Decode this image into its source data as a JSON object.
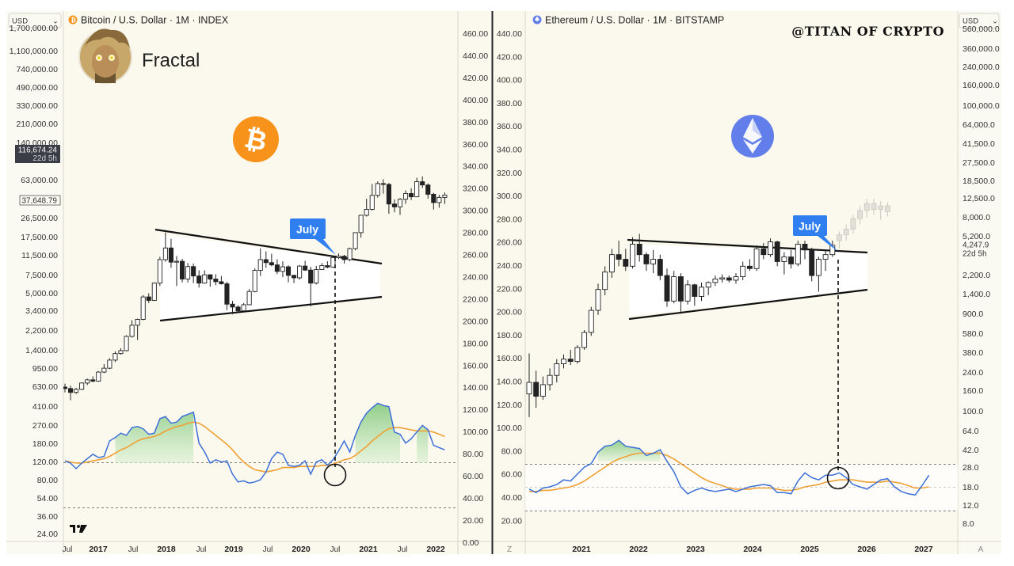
{
  "chart_data": [
    {
      "type": "candlestick",
      "title": "Bitcoin / U.S. Dollar · 1M · INDEX",
      "annotation_label": "Fractal",
      "callout": "July",
      "currency_select": "USD",
      "y_left_scale": "log",
      "y_left_ticks": [
        "1,100,000.00",
        "740,000.00",
        "490,000.00",
        "330,000.00",
        "210,000.00",
        "140,000.00",
        "63,000.00",
        "26,500.00",
        "17,500.00",
        "11,500.00",
        "7,500.00",
        "5,000.00",
        "3,400.00",
        "2,200.00",
        "1,400.00",
        "950.00",
        "630.00",
        "410.00",
        "270.00",
        "180.00",
        "120.00",
        "80.00",
        "54.00",
        "36.00",
        "24.00"
      ],
      "y_left_partial_top": "1,700,000.00",
      "price_badge": {
        "price": "116,674.24",
        "countdown": "22d 5h"
      },
      "level_badge": "37,648.79",
      "y_right_ticks": [
        "460.00",
        "440.00",
        "420.00",
        "400.00",
        "380.00",
        "360.00",
        "340.00",
        "320.00",
        "300.00",
        "280.00",
        "260.00",
        "240.00",
        "220.00",
        "200.00",
        "180.00",
        "160.00",
        "140.00",
        "120.00",
        "100.00",
        "80.00",
        "60.00",
        "40.00",
        "20.00",
        "0.00"
      ],
      "x_ticks": [
        {
          "label": "Jul",
          "bold": false
        },
        {
          "label": "2017",
          "bold": true
        },
        {
          "label": "Jul",
          "bold": false
        },
        {
          "label": "2018",
          "bold": true
        },
        {
          "label": "Jul",
          "bold": false
        },
        {
          "label": "2019",
          "bold": true
        },
        {
          "label": "Jul",
          "bold": false
        },
        {
          "label": "2020",
          "bold": true
        },
        {
          "label": "Jul",
          "bold": false
        },
        {
          "label": "2021",
          "bold": true
        },
        {
          "label": "Jul",
          "bold": false
        },
        {
          "label": "2022",
          "bold": true
        }
      ],
      "candles": [
        [
          630,
          680,
          560,
          610
        ],
        [
          610,
          650,
          470,
          560
        ],
        [
          560,
          620,
          540,
          600
        ],
        [
          600,
          700,
          590,
          690
        ],
        [
          690,
          760,
          660,
          740
        ],
        [
          740,
          800,
          700,
          720
        ],
        [
          720,
          900,
          710,
          880
        ],
        [
          880,
          1050,
          860,
          960
        ],
        [
          960,
          1200,
          940,
          1150
        ],
        [
          1150,
          1400,
          1100,
          1330
        ],
        [
          1330,
          1500,
          1300,
          1420
        ],
        [
          1420,
          2000,
          1400,
          1950
        ],
        [
          1950,
          2800,
          1900,
          2500
        ],
        [
          2500,
          2900,
          1800,
          2850
        ],
        [
          2850,
          4900,
          2800,
          4700
        ],
        [
          4700,
          5100,
          4100,
          4350
        ],
        [
          4350,
          6500,
          4300,
          6400
        ],
        [
          6400,
          11500,
          6000,
          10800
        ],
        [
          10800,
          19800,
          10300,
          14000
        ],
        [
          14000,
          17200,
          9000,
          10200
        ],
        [
          10200,
          11700,
          6000,
          10400
        ],
        [
          10400,
          11000,
          6500,
          7000
        ],
        [
          7000,
          10000,
          6500,
          9250
        ],
        [
          9250,
          9900,
          6400,
          7500
        ],
        [
          7500,
          8500,
          5800,
          6400
        ],
        [
          6400,
          8500,
          6300,
          7700
        ],
        [
          7700,
          7800,
          5900,
          7000
        ],
        [
          7000,
          7800,
          6100,
          6600
        ],
        [
          6600,
          7500,
          6200,
          6300
        ],
        [
          6300,
          6600,
          3500,
          4000
        ],
        [
          4000,
          4300,
          3200,
          3750
        ],
        [
          3750,
          3900,
          3350,
          3450
        ],
        [
          3450,
          4100,
          3400,
          3950
        ],
        [
          3950,
          5600,
          3900,
          5300
        ],
        [
          5300,
          8900,
          5200,
          8500
        ],
        [
          8500,
          13900,
          7500,
          10800
        ],
        [
          10800,
          13000,
          9000,
          10100
        ],
        [
          10100,
          12300,
          9300,
          9600
        ],
        [
          9600,
          10900,
          7800,
          8300
        ],
        [
          8300,
          10400,
          7300,
          9200
        ],
        [
          9200,
          9500,
          6500,
          7600
        ],
        [
          7600,
          7700,
          6400,
          7200
        ],
        [
          7200,
          9600,
          6900,
          9350
        ],
        [
          9350,
          10500,
          8400,
          8550
        ],
        [
          8550,
          9200,
          3800,
          6400
        ],
        [
          6400,
          9400,
          6200,
          8650
        ],
        [
          8650,
          10000,
          8600,
          9450
        ],
        [
          9450,
          10400,
          8900,
          9150
        ],
        [
          9150,
          11400,
          9000,
          11300
        ],
        [
          11300,
          12400,
          10900,
          11650
        ],
        [
          11650,
          12000,
          9900,
          10800
        ],
        [
          10800,
          14100,
          10400,
          13800
        ],
        [
          13800,
          19800,
          13300,
          19700
        ],
        [
          19700,
          29300,
          17600,
          29000
        ],
        [
          29000,
          41900,
          28200,
          33100
        ],
        [
          33100,
          58300,
          32300,
          45200
        ],
        [
          45200,
          61800,
          43000,
          58800
        ],
        [
          58800,
          64800,
          47000,
          57700
        ],
        [
          57700,
          59500,
          30000,
          37300
        ],
        [
          37300,
          41300,
          31000,
          35000
        ],
        [
          35000,
          42500,
          29300,
          41500
        ],
        [
          41500,
          50500,
          37400,
          47100
        ],
        [
          47100,
          52900,
          40800,
          43800
        ],
        [
          43800,
          67000,
          43300,
          61300
        ],
        [
          61300,
          69000,
          53300,
          57000
        ],
        [
          57000,
          59100,
          42000,
          46300
        ],
        [
          46300,
          47900,
          33000,
          38500
        ],
        [
          38500,
          45800,
          34300,
          43200
        ],
        [
          43200,
          48200,
          37300,
          45500
        ]
      ],
      "osc_line": [
        72,
        70,
        65,
        70,
        74,
        78,
        75,
        76,
        90,
        93,
        97,
        95,
        102,
        103,
        101,
        96,
        97,
        110,
        112,
        106,
        107,
        112,
        114,
        116,
        88,
        80,
        70,
        73,
        71,
        72,
        60,
        53,
        54,
        52,
        53,
        55,
        62,
        74,
        80,
        78,
        68,
        67,
        68,
        72,
        60,
        71,
        73,
        68,
        73,
        81,
        90,
        80,
        95,
        107,
        115,
        120,
        124,
        122,
        121,
        98,
        96,
        88,
        92,
        98,
        104,
        100,
        86,
        84,
        82
      ],
      "osc_signal": [
        72,
        71,
        70,
        70,
        71,
        72,
        73,
        74,
        76,
        79,
        82,
        84,
        87,
        90,
        92,
        93,
        94,
        96,
        99,
        101,
        103,
        104,
        106,
        107,
        106,
        103,
        99,
        95,
        91,
        87,
        82,
        76,
        71,
        67,
        64,
        63,
        62,
        63,
        64,
        66,
        66,
        66,
        67,
        67,
        67,
        67,
        68,
        68,
        69,
        71,
        73,
        74,
        77,
        81,
        85,
        90,
        94,
        98,
        101,
        102,
        102,
        101,
        100,
        99,
        99,
        99,
        98,
        96,
        94
      ],
      "osc_ticks": [
        "80.00",
        "60.00",
        "40.00",
        "20.00",
        "0.00"
      ],
      "osc_levels": [
        70,
        30
      ]
    },
    {
      "type": "candlestick",
      "title": "Ethereum / U.S. Dollar · 1M · BITSTAMP",
      "watermark": "@TITAN OF CRYPTO",
      "callout": "July",
      "currency_select": "USD",
      "y_left_ticks": [
        "440.00",
        "420.00",
        "400.00",
        "380.00",
        "360.00",
        "340.00",
        "320.00",
        "300.00",
        "280.00",
        "260.00",
        "240.00",
        "220.00",
        "200.00",
        "180.00",
        "160.00",
        "140.00",
        "120.00",
        "100.00",
        "80.00",
        "60.00",
        "40.00",
        "20.00"
      ],
      "y_right_scale": "log",
      "y_right_ticks": [
        "360,000.0",
        "240,000.0",
        "160,000.0",
        "100,000.0",
        "64,000.0",
        "41,500.0",
        "27,500.0",
        "18,500.0",
        "12,500.0",
        "8,000.0",
        "5,200.0",
        "2,200.0",
        "1,400.0",
        "900.0",
        "580.0",
        "380.0",
        "240.0",
        "160.0",
        "100.0",
        "64.0",
        "42.0",
        "28.0",
        "18.0",
        "12.0",
        "8.0"
      ],
      "y_right_partial_top": "560,000.0",
      "price_badge": {
        "price": "4,247.9",
        "countdown": "22d 5h"
      },
      "x_ticks": [
        "2021",
        "2022",
        "2023",
        "2024",
        "2025",
        "2026",
        "2027"
      ],
      "corner_left": "Z",
      "corner_right": "A",
      "candles": [
        [
          130,
          165,
          110,
          140
        ],
        [
          140,
          150,
          118,
          128
        ],
        [
          128,
          145,
          125,
          138
        ],
        [
          138,
          152,
          133,
          146
        ],
        [
          146,
          160,
          140,
          156
        ],
        [
          156,
          164,
          152,
          160
        ],
        [
          160,
          168,
          155,
          158
        ],
        [
          158,
          172,
          156,
          170
        ],
        [
          170,
          185,
          168,
          183
        ],
        [
          183,
          205,
          180,
          202
        ],
        [
          202,
          225,
          198,
          220
        ],
        [
          220,
          240,
          215,
          235
        ],
        [
          235,
          255,
          230,
          250
        ],
        [
          250,
          262,
          240,
          246
        ],
        [
          246,
          255,
          236,
          240
        ],
        [
          240,
          265,
          238,
          259
        ],
        [
          259,
          268,
          244,
          250
        ],
        [
          250,
          252,
          236,
          242
        ],
        [
          242,
          254,
          234,
          246
        ],
        [
          246,
          250,
          228,
          232
        ],
        [
          232,
          238,
          205,
          210
        ],
        [
          210,
          236,
          208,
          231
        ],
        [
          231,
          234,
          200,
          210
        ],
        [
          210,
          228,
          207,
          224
        ],
        [
          224,
          225,
          206,
          214
        ],
        [
          214,
          226,
          210,
          222
        ],
        [
          222,
          227,
          215,
          226
        ],
        [
          226,
          232,
          223,
          229
        ],
        [
          229,
          233,
          226,
          230
        ],
        [
          230,
          232,
          226,
          228
        ],
        [
          228,
          234,
          225,
          231
        ],
        [
          231,
          244,
          228,
          240
        ],
        [
          240,
          246,
          236,
          238
        ],
        [
          238,
          258,
          236,
          255
        ],
        [
          255,
          260,
          246,
          250
        ],
        [
          250,
          264,
          248,
          261
        ],
        [
          261,
          262,
          240,
          244
        ],
        [
          244,
          252,
          233,
          248
        ],
        [
          248,
          254,
          238,
          242
        ],
        [
          242,
          262,
          240,
          259
        ],
        [
          259,
          262,
          246,
          254
        ],
        [
          254,
          256,
          227,
          232
        ],
        [
          232,
          248,
          218,
          246
        ],
        [
          246,
          254,
          236,
          250
        ],
        [
          250,
          262,
          248,
          258
        ]
      ],
      "forecast_candles": [
        [
          262,
          270,
          255,
          267
        ],
        [
          267,
          276,
          262,
          272
        ],
        [
          272,
          284,
          268,
          281
        ],
        [
          281,
          292,
          276,
          288
        ],
        [
          288,
          298,
          282,
          294
        ],
        [
          294,
          298,
          284,
          289
        ],
        [
          289,
          296,
          280,
          292
        ],
        [
          292,
          295,
          283,
          287
        ]
      ],
      "osc_line": [
        48,
        45,
        49,
        50,
        52,
        56,
        55,
        61,
        67,
        70,
        80,
        85,
        86,
        90,
        85,
        84,
        83,
        77,
        79,
        82,
        72,
        63,
        50,
        44,
        47,
        49,
        47,
        46,
        47,
        48,
        46,
        48,
        50,
        51,
        52,
        51,
        45,
        45,
        44,
        55,
        62,
        58,
        56,
        60,
        60,
        62,
        58,
        52,
        50,
        48,
        52,
        56,
        57,
        50,
        46,
        44,
        43,
        51,
        60
      ],
      "osc_signal": [
        46,
        46,
        47,
        47,
        48,
        49,
        50,
        52,
        55,
        59,
        63,
        67,
        71,
        74,
        76,
        78,
        79,
        79,
        79,
        79,
        77,
        74,
        70,
        66,
        62,
        58,
        55,
        53,
        51,
        49,
        48,
        48,
        48,
        49,
        49,
        49,
        48,
        47,
        47,
        48,
        50,
        51,
        52,
        54,
        55,
        56,
        56,
        56,
        55,
        54,
        54,
        54,
        55,
        54,
        53,
        51,
        49,
        49,
        50
      ],
      "osc_ticks": [
        "80.00",
        "60.00",
        "40.00",
        "20.00"
      ],
      "osc_levels": [
        70,
        30
      ]
    }
  ]
}
